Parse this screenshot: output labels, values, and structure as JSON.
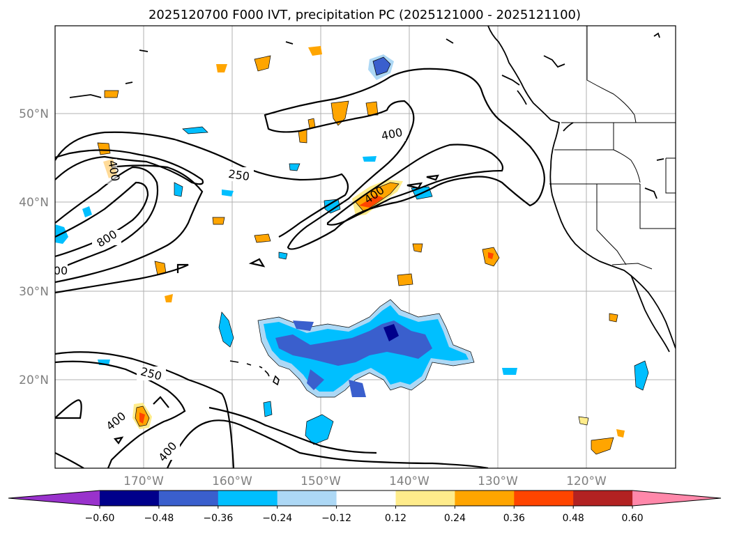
{
  "title": "2025120700 F000 IVT, precipitation PC (2025121000 - 2025121100)",
  "lat_labels": [
    "50°N",
    "40°N",
    "30°N",
    "20°N"
  ],
  "lon_labels": [
    "170°W",
    "160°W",
    "150°W",
    "140°W",
    "130°W",
    "120°W"
  ],
  "contour_labels": [
    "250",
    "400",
    "400",
    "800",
    "400",
    "250",
    "400",
    "400",
    "00"
  ],
  "colorbar": {
    "ticks": [
      "−0.60",
      "−0.48",
      "−0.36",
      "−0.24",
      "−0.12",
      "0.12",
      "0.24",
      "0.36",
      "0.48",
      "0.60"
    ],
    "colors": [
      "#9932cc",
      "#00008b",
      "#3a5fcd",
      "#00bfff",
      "#add8f5",
      "#ffffff",
      "#ffec8b",
      "#ffa500",
      "#ff4500",
      "#b22222",
      "#ff88aa"
    ]
  }
}
